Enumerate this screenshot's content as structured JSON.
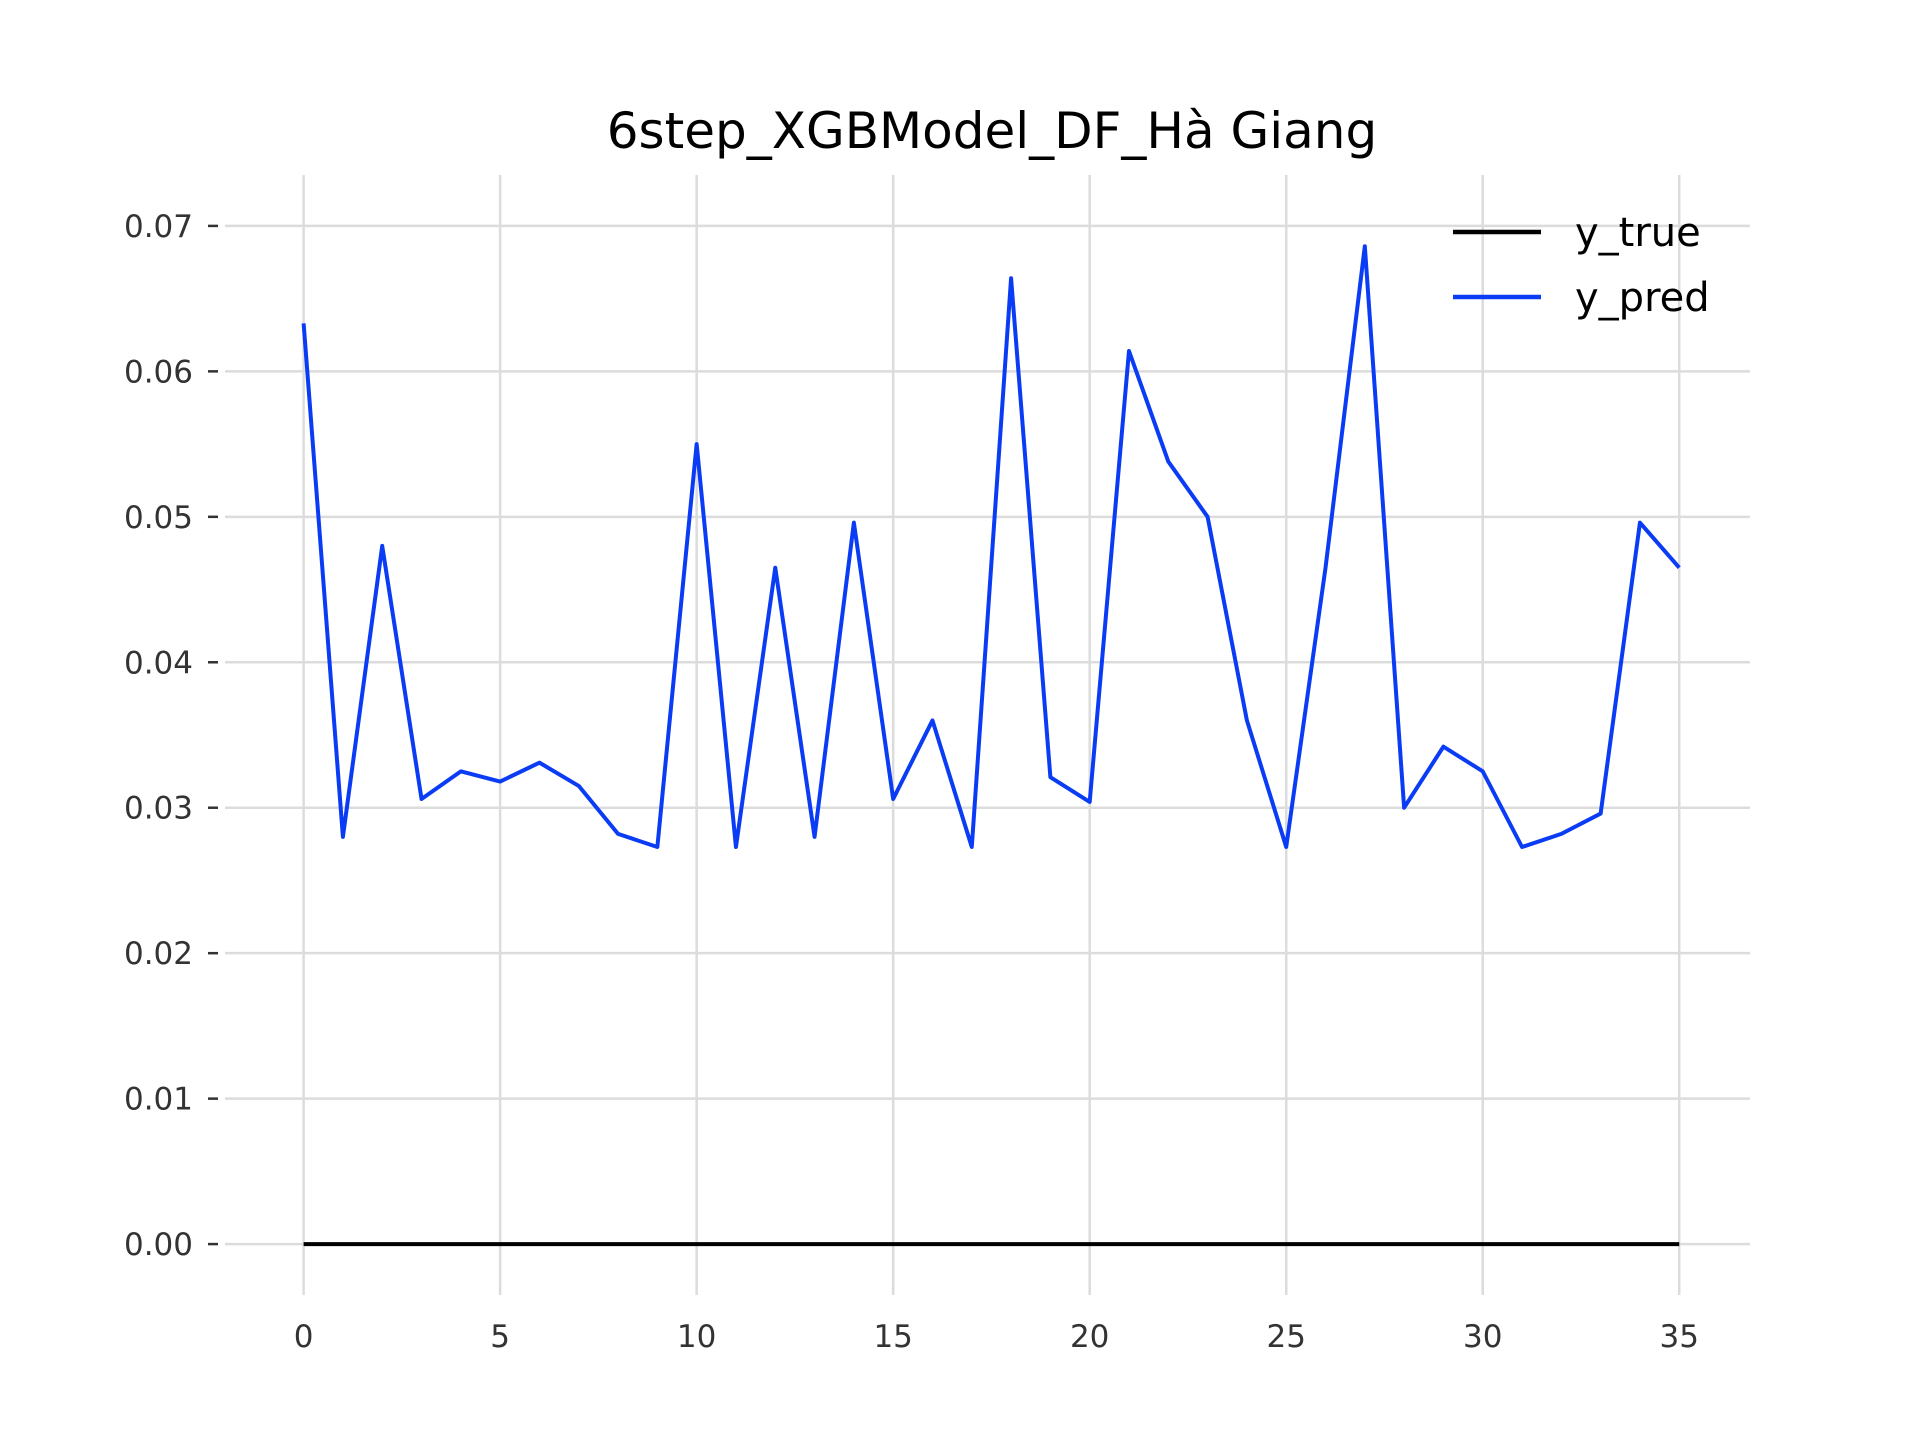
{
  "chart_data": {
    "type": "line",
    "title": "6step_XGBModel_DF_Hà Giang",
    "xlabel": "",
    "ylabel": "",
    "xlim": [
      -2,
      36.8
    ],
    "ylim": [
      -0.0035,
      0.0735
    ],
    "grid": true,
    "legend_position": "top-right",
    "x_ticks": [
      0,
      5,
      10,
      15,
      20,
      25,
      30,
      35
    ],
    "x_tick_labels": [
      "0",
      "5",
      "10",
      "15",
      "20",
      "25",
      "30",
      "35"
    ],
    "y_ticks": [
      0.0,
      0.01,
      0.02,
      0.03,
      0.04,
      0.05,
      0.06,
      0.07
    ],
    "y_tick_labels": [
      "0.00",
      "0.01",
      "0.02",
      "0.03",
      "0.04",
      "0.05",
      "0.06",
      "0.07"
    ],
    "x": [
      0,
      1,
      2,
      3,
      4,
      5,
      6,
      7,
      8,
      9,
      10,
      11,
      12,
      13,
      14,
      15,
      16,
      17,
      18,
      19,
      20,
      21,
      22,
      23,
      24,
      25,
      26,
      27,
      28,
      29,
      30,
      31,
      32,
      33,
      34,
      35
    ],
    "series": [
      {
        "name": "y_true",
        "color": "#000000",
        "values": [
          0,
          0,
          0,
          0,
          0,
          0,
          0,
          0,
          0,
          0,
          0,
          0,
          0,
          0,
          0,
          0,
          0,
          0,
          0,
          0,
          0,
          0,
          0,
          0,
          0,
          0,
          0,
          0,
          0,
          0,
          0,
          0,
          0,
          0,
          0,
          0
        ]
      },
      {
        "name": "y_pred",
        "color": "#0a3cf5",
        "values": [
          0.0633,
          0.028,
          0.048,
          0.0306,
          0.0325,
          0.0318,
          0.0331,
          0.0315,
          0.0282,
          0.0273,
          0.055,
          0.0273,
          0.0465,
          0.028,
          0.0496,
          0.0306,
          0.036,
          0.0273,
          0.0664,
          0.0321,
          0.0304,
          0.0614,
          0.0538,
          0.05,
          0.036,
          0.0273,
          0.0465,
          0.0686,
          0.03,
          0.0342,
          0.0325,
          0.0273,
          0.0282,
          0.0296,
          0.0496,
          0.0465
        ]
      }
    ]
  }
}
